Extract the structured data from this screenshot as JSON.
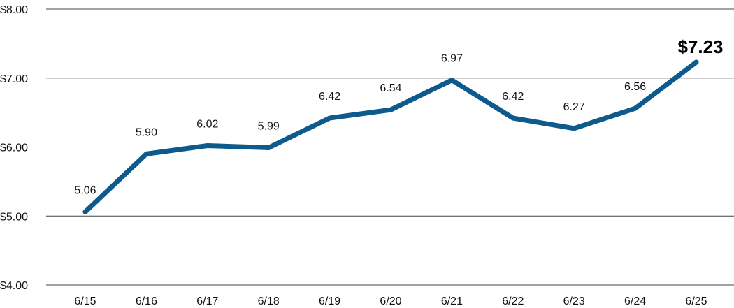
{
  "chart_data": {
    "type": "line",
    "title": "",
    "xlabel": "",
    "ylabel": "",
    "categories": [
      "6/15",
      "6/16",
      "6/17",
      "6/18",
      "6/19",
      "6/20",
      "6/21",
      "6/22",
      "6/23",
      "6/24",
      "6/25"
    ],
    "series": [
      {
        "values": [
          5.06,
          5.9,
          6.02,
          5.99,
          6.42,
          6.54,
          6.97,
          6.42,
          6.27,
          6.56,
          7.23
        ],
        "data_labels": [
          "5.06",
          "5.90",
          "6.02",
          "5.99",
          "6.42",
          "6.54",
          "6.97",
          "6.42",
          "6.27",
          "6.56",
          "$7.23"
        ],
        "color": "#0f5a8c"
      }
    ],
    "ylim": [
      4,
      8
    ],
    "y_ticks": [
      4,
      5,
      6,
      7,
      8
    ],
    "y_tick_labels": [
      "$4.00",
      "$5.00",
      "$6.00",
      "$7.00",
      "$8.00"
    ],
    "grid": true,
    "last_label_emphasized": true
  }
}
